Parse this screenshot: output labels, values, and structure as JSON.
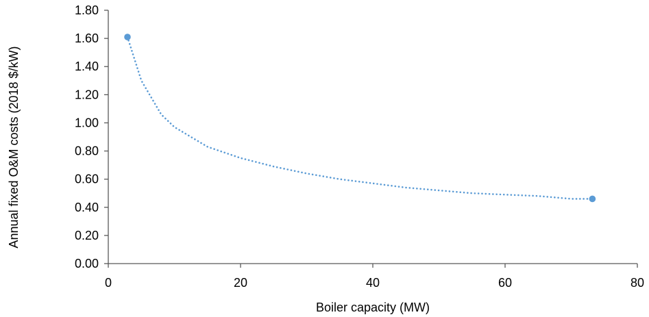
{
  "chart_data": {
    "type": "scatter",
    "title": "",
    "xlabel": "Boiler capacity (MW)",
    "ylabel": "Annual fixed O&M costs (2018 $/kW)",
    "xlim": [
      0,
      80
    ],
    "ylim": [
      0,
      1.8
    ],
    "xticks": [
      0,
      20,
      40,
      60,
      80
    ],
    "yticks": [
      0,
      0.2,
      0.4,
      0.6,
      0.8,
      1.0,
      1.2,
      1.4,
      1.6,
      1.8
    ],
    "xtick_labels": [
      "0",
      "20",
      "40",
      "60",
      "80"
    ],
    "ytick_labels": [
      "0.00",
      "0.20",
      "0.40",
      "0.60",
      "0.80",
      "1.00",
      "1.20",
      "1.40",
      "1.60",
      "1.80"
    ],
    "grid": false,
    "legend": "none",
    "series": [
      {
        "points": [
          {
            "x": 2.9,
            "y": 1.61
          },
          {
            "x": 73.2,
            "y": 0.46
          }
        ],
        "trendline": {
          "style": "dotted",
          "curve": [
            {
              "x": 2.9,
              "y": 1.61
            },
            {
              "x": 5,
              "y": 1.3
            },
            {
              "x": 8,
              "y": 1.06
            },
            {
              "x": 10,
              "y": 0.97
            },
            {
              "x": 15,
              "y": 0.83
            },
            {
              "x": 20,
              "y": 0.75
            },
            {
              "x": 25,
              "y": 0.69
            },
            {
              "x": 30,
              "y": 0.64
            },
            {
              "x": 35,
              "y": 0.6
            },
            {
              "x": 40,
              "y": 0.57
            },
            {
              "x": 45,
              "y": 0.54
            },
            {
              "x": 50,
              "y": 0.52
            },
            {
              "x": 55,
              "y": 0.5
            },
            {
              "x": 60,
              "y": 0.49
            },
            {
              "x": 65,
              "y": 0.48
            },
            {
              "x": 70,
              "y": 0.46
            },
            {
              "x": 73.2,
              "y": 0.46
            }
          ]
        }
      }
    ],
    "colors": {
      "series": "#5b9bd5",
      "axis": "#595959"
    }
  }
}
